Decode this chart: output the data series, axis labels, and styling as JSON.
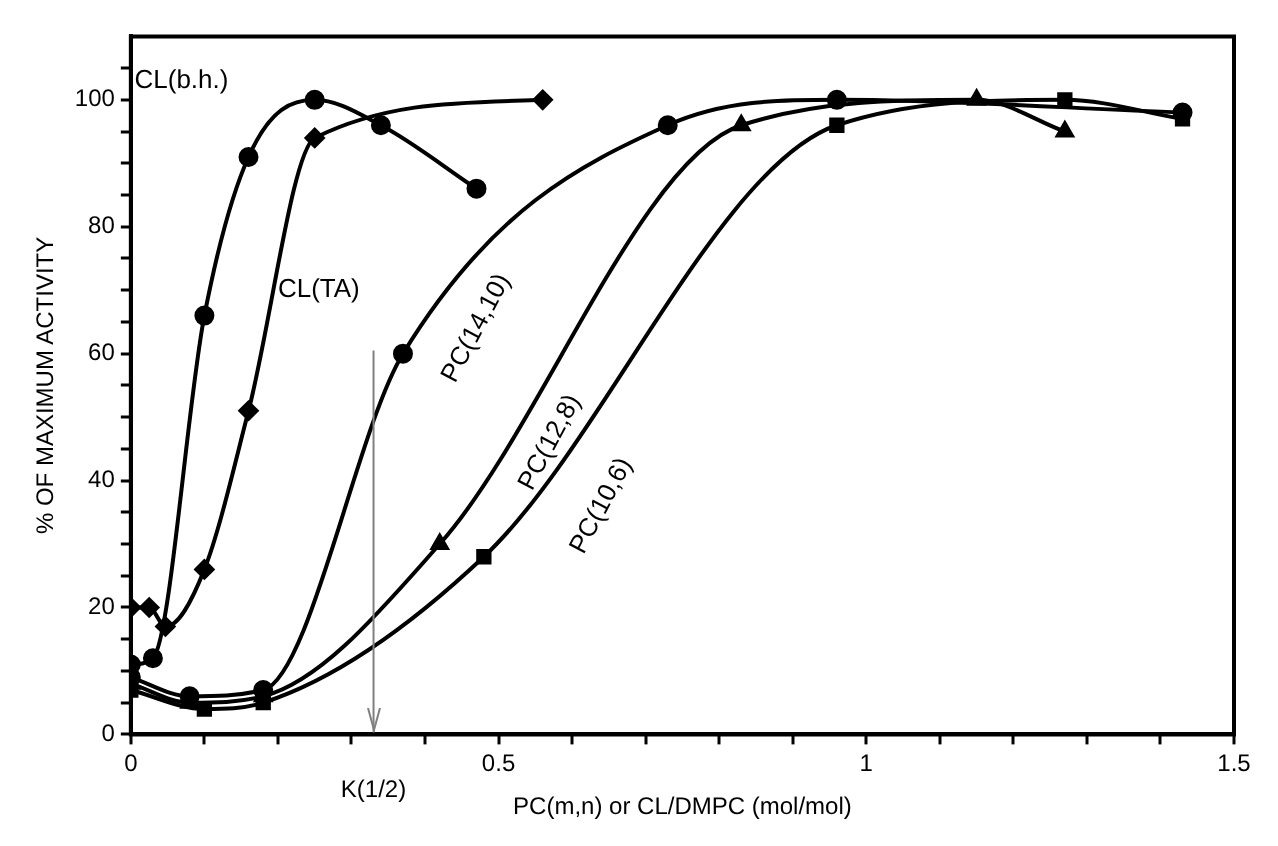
{
  "chart_data": {
    "type": "line",
    "xlabel": "PC(m,n) or CL/DMPC (mol/mol)",
    "ylabel": "% OF MAXIMUM ACTIVITY",
    "xlim": [
      0,
      1.5
    ],
    "xticks": [
      0,
      {
        "value": 0.1,
        "label": null
      },
      {
        "value": 0.2,
        "label": null
      },
      {
        "value": 0.3,
        "label": null
      },
      {
        "value": 0.4,
        "label": null
      },
      0.5,
      {
        "value": 0.6,
        "label": null
      },
      {
        "value": 0.7,
        "label": null
      },
      {
        "value": 0.8,
        "label": null
      },
      {
        "value": 0.9,
        "label": null
      },
      1,
      {
        "value": 1.1,
        "label": null
      },
      {
        "value": 1.2,
        "label": null
      },
      {
        "value": 1.3,
        "label": null
      },
      {
        "value": 1.4,
        "label": null
      },
      1.5
    ],
    "ylim": [
      0,
      110
    ],
    "yticks": [
      0,
      {
        "value": 5,
        "label": null
      },
      {
        "value": 10,
        "label": null
      },
      {
        "value": 15,
        "label": null
      },
      20,
      {
        "value": 25,
        "label": null
      },
      {
        "value": 30,
        "label": null
      },
      {
        "value": 35,
        "label": null
      },
      40,
      {
        "value": 45,
        "label": null
      },
      {
        "value": 50,
        "label": null
      },
      {
        "value": 55,
        "label": null
      },
      60,
      {
        "value": 65,
        "label": null
      },
      {
        "value": 70,
        "label": null
      },
      {
        "value": 75,
        "label": null
      },
      80,
      {
        "value": 85,
        "label": null
      },
      {
        "value": 90,
        "label": null
      },
      {
        "value": 95,
        "label": null
      },
      100,
      {
        "value": 105,
        "label": null
      }
    ],
    "grid": false,
    "legend": false,
    "line_style": "solid",
    "ref_lines": [
      {
        "axis": "x",
        "value": 0.33,
        "label": "K(1/2)",
        "color": "#808080"
      }
    ],
    "series": [
      {
        "name": "CL(b.h.)",
        "color": "#000000",
        "marker": "circle",
        "x": [
          0,
          0.03,
          0.1,
          0.16,
          0.25,
          0.34,
          0.47
        ],
        "values": [
          11,
          12,
          66,
          91,
          100,
          96,
          86
        ]
      },
      {
        "name": "CL(TA)",
        "color": "#000000",
        "marker": "diamond",
        "x": [
          0,
          0.025,
          0.047,
          0.1,
          0.16,
          0.25,
          0.56
        ],
        "values": [
          20,
          20,
          17,
          26,
          51,
          94,
          100
        ]
      },
      {
        "name": "PC(14,10)",
        "color": "#000000",
        "marker": "circle",
        "x": [
          0,
          0.08,
          0.18,
          0.37,
          0.73,
          0.96,
          1.43
        ],
        "values": [
          9,
          6,
          7,
          60,
          96,
          100,
          98
        ]
      },
      {
        "name": "PC(12,8)",
        "color": "#000000",
        "marker": "triangle",
        "x": [
          0,
          0.08,
          0.18,
          0.42,
          0.83,
          1.15,
          1.27
        ],
        "values": [
          8,
          5,
          6,
          30,
          96,
          100,
          95
        ]
      },
      {
        "name": "PC(10,6)",
        "color": "#000000",
        "marker": "square",
        "x": [
          0,
          0.1,
          0.18,
          0.48,
          0.96,
          1.27,
          1.43
        ],
        "values": [
          7,
          4,
          5,
          28,
          96,
          100,
          97
        ]
      }
    ]
  }
}
